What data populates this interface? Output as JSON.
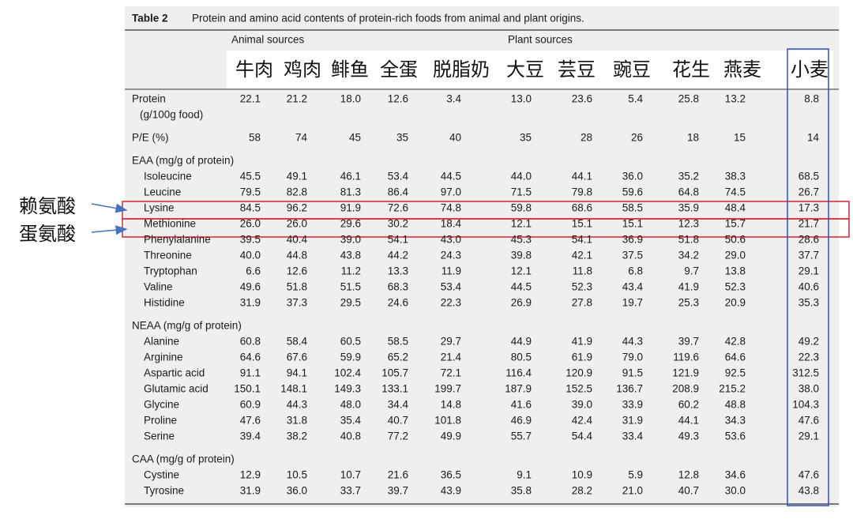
{
  "table": {
    "title_label": "Table 2",
    "title": "Protein and amino acid contents of protein-rich foods from animal and plant origins.",
    "groups": [
      "Animal sources",
      "Plant sources"
    ],
    "columns": [
      "牛肉",
      "鸡肉",
      "鲱鱼",
      "全蛋",
      "脱脂奶",
      "大豆",
      "芸豆",
      "豌豆",
      "花生",
      "燕麦",
      "小麦"
    ],
    "rows": [
      {
        "label": "Protein",
        "sublabel": "(g/100g food)",
        "values": [
          "22.1",
          "21.2",
          "18.0",
          "12.6",
          "3.4",
          "13.0",
          "23.6",
          "5.4",
          "25.8",
          "13.2",
          "8.8"
        ]
      },
      {
        "label": "P/E (%)",
        "values": [
          "58",
          "74",
          "45",
          "35",
          "40",
          "35",
          "28",
          "26",
          "18",
          "15",
          "14"
        ]
      },
      {
        "heading": "EAA (mg/g of protein)"
      },
      {
        "label": "Isoleucine",
        "values": [
          "45.5",
          "49.1",
          "46.1",
          "53.4",
          "44.5",
          "44.0",
          "44.1",
          "36.0",
          "35.2",
          "38.3",
          "68.5"
        ]
      },
      {
        "label": "Leucine",
        "values": [
          "79.5",
          "82.8",
          "81.3",
          "86.4",
          "97.0",
          "71.5",
          "79.8",
          "59.6",
          "64.8",
          "74.5",
          "26.7"
        ]
      },
      {
        "label": "Lysine",
        "values": [
          "84.5",
          "96.2",
          "91.9",
          "72.6",
          "74.8",
          "59.8",
          "68.6",
          "58.5",
          "35.9",
          "48.4",
          "17.3"
        ]
      },
      {
        "label": "Methionine",
        "values": [
          "26.0",
          "26.0",
          "29.6",
          "30.2",
          "18.4",
          "12.1",
          "15.1",
          "15.1",
          "12.3",
          "15.7",
          "21.7"
        ]
      },
      {
        "label": "Phenylalanine",
        "values": [
          "39.5",
          "40.4",
          "39.0",
          "54.1",
          "43.0",
          "45.3",
          "54.1",
          "36.9",
          "51.8",
          "50.6",
          "28.6"
        ]
      },
      {
        "label": "Threonine",
        "values": [
          "40.0",
          "44.8",
          "43.8",
          "44.2",
          "24.3",
          "39.8",
          "42.1",
          "37.5",
          "34.2",
          "29.0",
          "37.7"
        ]
      },
      {
        "label": "Tryptophan",
        "values": [
          "6.6",
          "12.6",
          "11.2",
          "13.3",
          "11.9",
          "12.1",
          "11.8",
          "6.8",
          "9.7",
          "13.8",
          "29.1"
        ]
      },
      {
        "label": "Valine",
        "values": [
          "49.6",
          "51.8",
          "51.5",
          "68.3",
          "53.4",
          "44.5",
          "52.3",
          "43.4",
          "41.9",
          "52.3",
          "40.6"
        ]
      },
      {
        "label": "Histidine",
        "values": [
          "31.9",
          "37.3",
          "29.5",
          "24.6",
          "22.3",
          "26.9",
          "27.8",
          "19.7",
          "25.3",
          "20.9",
          "35.3"
        ]
      },
      {
        "heading": "NEAA (mg/g of protein)"
      },
      {
        "label": "Alanine",
        "values": [
          "60.8",
          "58.4",
          "60.5",
          "58.5",
          "29.7",
          "44.9",
          "41.9",
          "44.3",
          "39.7",
          "42.8",
          "49.2"
        ]
      },
      {
        "label": "Arginine",
        "values": [
          "64.6",
          "67.6",
          "59.9",
          "65.2",
          "21.4",
          "80.5",
          "61.9",
          "79.0",
          "119.6",
          "64.6",
          "22.3"
        ]
      },
      {
        "label": "Aspartic acid",
        "values": [
          "91.1",
          "94.1",
          "102.4",
          "105.7",
          "72.1",
          "116.4",
          "120.9",
          "91.5",
          "121.9",
          "92.5",
          "312.5"
        ]
      },
      {
        "label": "Glutamic acid",
        "values": [
          "150.1",
          "148.1",
          "149.3",
          "133.1",
          "199.7",
          "187.9",
          "152.5",
          "136.7",
          "208.9",
          "215.2",
          "38.0"
        ]
      },
      {
        "label": "Glycine",
        "values": [
          "60.9",
          "44.3",
          "48.0",
          "34.4",
          "14.8",
          "41.6",
          "39.0",
          "33.9",
          "60.2",
          "48.8",
          "104.3"
        ]
      },
      {
        "label": "Proline",
        "values": [
          "47.6",
          "31.8",
          "35.4",
          "40.7",
          "101.8",
          "46.9",
          "42.4",
          "31.9",
          "44.1",
          "34.3",
          "47.6"
        ]
      },
      {
        "label": "Serine",
        "values": [
          "39.4",
          "38.2",
          "40.8",
          "77.2",
          "49.9",
          "55.7",
          "54.4",
          "33.4",
          "49.3",
          "53.6",
          "29.1"
        ]
      },
      {
        "heading": "CAA (mg/g of protein)"
      },
      {
        "label": "Cystine",
        "values": [
          "12.9",
          "10.5",
          "10.7",
          "21.6",
          "36.5",
          "9.1",
          "10.9",
          "5.9",
          "12.8",
          "34.6",
          "47.6"
        ]
      },
      {
        "label": "Tyrosine",
        "values": [
          "31.9",
          "36.0",
          "33.7",
          "39.7",
          "43.9",
          "35.8",
          "28.2",
          "21.0",
          "40.7",
          "30.0",
          "43.8"
        ]
      }
    ]
  },
  "annotations": [
    {
      "label": "赖氨酸"
    },
    {
      "label": "蛋氨酸"
    }
  ]
}
